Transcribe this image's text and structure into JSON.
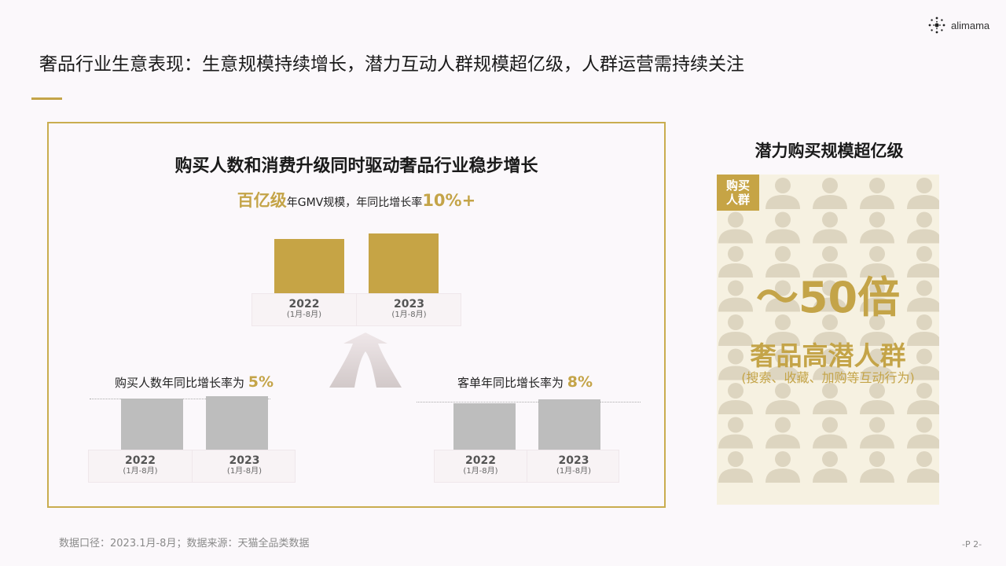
{
  "logo": {
    "text": "alimama"
  },
  "page_title": "奢品行业生意表现：生意规模持续增长，潜力互动人群规模超亿级，人群运营需持续关注",
  "left_panel": {
    "title": "购买人数和消费升级同时驱动奢品行业稳步增长",
    "subline": {
      "a": "百亿级",
      "b": "年GMV规模，年同比增长率",
      "c": "10%+"
    },
    "buyers_metric": {
      "label": "购买人数年同比增长率为",
      "value": "5%"
    },
    "aov_metric": {
      "label": "客单年同比增长率为",
      "value": "8%"
    }
  },
  "right_panel": {
    "title": "潜力购买规模超亿级",
    "badge_line1": "购买",
    "badge_line2": "人群",
    "multiple": "～50倍",
    "category": "奢品高潜人群",
    "note": "(搜索、收藏、加购等互动行为)"
  },
  "footnote": "数据口径：2023.1月-8月；数据来源：天猫全品类数据",
  "page_number": "-P 2-",
  "colors": {
    "gold": "#c6a445",
    "grey": "#bdbdbd",
    "crowd_bg": "#f6f1e1",
    "person": "#ddd5c0"
  },
  "chart_data": [
    {
      "type": "bar",
      "name": "GMV",
      "categories": [
        {
          "year": "2022",
          "range": "(1月-8月)"
        },
        {
          "year": "2023",
          "range": "(1月-8月)"
        }
      ],
      "values": [
        100,
        110
      ],
      "annotation": "10%+"
    },
    {
      "type": "bar",
      "name": "购买人数",
      "categories": [
        {
          "year": "2022",
          "range": "(1月-8月)"
        },
        {
          "year": "2023",
          "range": "(1月-8月)"
        }
      ],
      "values": [
        100,
        105
      ],
      "annotation": "5%"
    },
    {
      "type": "bar",
      "name": "客单",
      "categories": [
        {
          "year": "2022",
          "range": "(1月-8月)"
        },
        {
          "year": "2023",
          "range": "(1月-8月)"
        }
      ],
      "values": [
        100,
        108
      ],
      "annotation": "8%"
    }
  ]
}
